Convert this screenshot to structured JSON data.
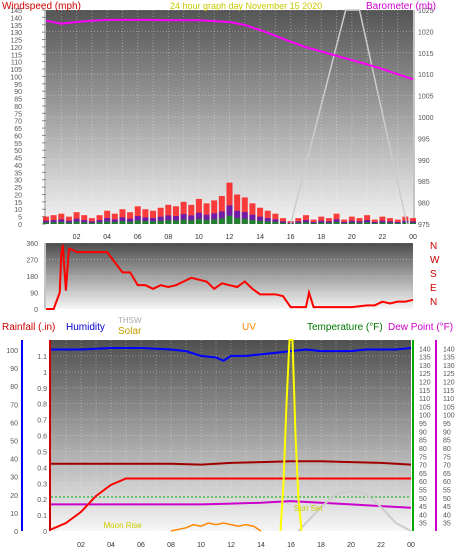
{
  "chart_data": [
    {
      "type": "line",
      "title": "24 hour graph day   November 15 2020",
      "ylabel_left": "Windspeed (mph)",
      "ylabel_right": "Barometer (mb)",
      "x_ticks": [
        "02",
        "04",
        "06",
        "08",
        "10",
        "12",
        "14",
        "16",
        "18",
        "20",
        "22",
        "00"
      ],
      "left_ticks": [
        "0",
        "5",
        "10",
        "15",
        "20",
        "25",
        "30",
        "35",
        "40",
        "45",
        "50",
        "55",
        "60",
        "65",
        "70",
        "75",
        "80",
        "85",
        "90",
        "95",
        "100",
        "105",
        "110",
        "115",
        "120",
        "125",
        "130",
        "135",
        "140",
        "145"
      ],
      "right_ticks": [
        "975",
        "980",
        "985",
        "990",
        "995",
        "1000",
        "1005",
        "1010",
        "1015",
        "1020",
        "1025"
      ],
      "ylim_left": [
        0,
        145
      ],
      "ylim_right": [
        975,
        1025
      ],
      "colors": {
        "windspeed": "#ff0000",
        "barometer": "#ff00ff",
        "gust_fill": "#0000ff",
        "wind_avg": "#00aa00",
        "solar_outline": "#cccccc"
      },
      "series": [
        {
          "name": "Barometer (mb)",
          "axis": "right",
          "color": "#ff00ff",
          "x": [
            0,
            1,
            2,
            3,
            4,
            5,
            6,
            7,
            8,
            9,
            10,
            11,
            12,
            13,
            14,
            15,
            16,
            17,
            18,
            19,
            20,
            21,
            22,
            23,
            24
          ],
          "values": [
            1022.5,
            1021.8,
            1022.2,
            1022.5,
            1022.7,
            1022.7,
            1022.7,
            1022.7,
            1022.6,
            1022.6,
            1022.6,
            1022.4,
            1022.2,
            1021.5,
            1020.3,
            1019.0,
            1017.6,
            1016.3,
            1015.3,
            1014.3,
            1013.3,
            1012.3,
            1011.2,
            1010.0,
            1008.8
          ]
        },
        {
          "name": "Windspeed (mph)",
          "axis": "left",
          "color": "#ff0000",
          "x": [
            0,
            0.5,
            1,
            1.5,
            2,
            2.5,
            3,
            3.5,
            4,
            4.5,
            5,
            5.5,
            6,
            6.5,
            7,
            7.5,
            8,
            8.5,
            9,
            9.5,
            10,
            10.5,
            11,
            11.5,
            12,
            12.5,
            13,
            13.5,
            14,
            14.5,
            15,
            15.5,
            16,
            16.5,
            17,
            17.5,
            18,
            18.5,
            19,
            19.5,
            20,
            20.5,
            21,
            21.5,
            22,
            22.5,
            23,
            23.5,
            24
          ],
          "values": [
            5,
            6,
            7,
            5,
            8,
            6,
            4,
            6,
            9,
            7,
            10,
            8,
            12,
            10,
            9,
            11,
            13,
            12,
            15,
            13,
            17,
            14,
            16,
            19,
            28,
            20,
            18,
            14,
            11,
            9,
            7,
            4,
            2,
            4,
            6,
            3,
            5,
            4,
            7,
            3,
            5,
            4,
            6,
            3,
            5,
            4,
            3,
            5,
            4
          ]
        }
      ]
    },
    {
      "type": "line",
      "title": "",
      "ylabel_right": "",
      "x_ticks": [
        "02",
        "04",
        "06",
        "08",
        "10",
        "12",
        "14",
        "16",
        "18",
        "20",
        "22",
        "00"
      ],
      "left_ticks": [
        "0",
        "90",
        "180",
        "270",
        "360"
      ],
      "right_labels": [
        "N",
        "W",
        "S",
        "E",
        "N"
      ],
      "ylim": [
        0,
        360
      ],
      "colors": {
        "direction": "#ff0000"
      },
      "series": [
        {
          "name": "",
          "color": "#ff0000",
          "x": [
            0,
            0.5,
            0.9,
            1.0,
            1.1,
            1.3,
            1.5,
            1.8,
            2.0,
            2.3,
            3,
            3.5,
            4,
            5,
            5.5,
            6,
            6.5,
            7,
            7.5,
            8,
            8.5,
            9,
            9.5,
            10,
            10.5,
            11,
            11.5,
            12,
            12.5,
            13,
            13.5,
            14,
            14.5,
            15,
            15.5,
            16,
            16.5,
            17,
            17.2,
            17.5,
            18,
            19,
            20,
            21,
            21.5,
            22,
            22.5,
            23,
            23.5,
            24
          ],
          "values": [
            0,
            0,
            90,
            300,
            350,
            100,
            330,
            320,
            310,
            310,
            310,
            310,
            310,
            200,
            200,
            130,
            130,
            110,
            130,
            120,
            130,
            150,
            170,
            160,
            150,
            110,
            140,
            130,
            120,
            150,
            110,
            80,
            80,
            80,
            70,
            10,
            10,
            10,
            90,
            10,
            10,
            10,
            10,
            20,
            20,
            40,
            30,
            40,
            40,
            50
          ]
        }
      ]
    },
    {
      "type": "line",
      "title": "",
      "legend": [
        "Rainfall (.in)",
        "Humidity",
        "THSW",
        "Solar",
        "UV",
        "Temperature (°F)",
        "Dew Point (°F)"
      ],
      "x_ticks": [
        "02",
        "04",
        "06",
        "08",
        "10",
        "12",
        "14",
        "16",
        "18",
        "20",
        "22",
        "00"
      ],
      "left_ticks": [
        "0",
        "0.1",
        "0.2",
        "0.3",
        "0.4",
        "0.5",
        "0.6",
        "0.7",
        "0.8",
        "0.9",
        "1",
        "1.1"
      ],
      "left_ticks_outer": [
        "0",
        "10",
        "20",
        "30",
        "40",
        "50",
        "60",
        "70",
        "80",
        "90",
        "100"
      ],
      "right_ticks": [
        "35",
        "40",
        "45",
        "50",
        "55",
        "60",
        "65",
        "70",
        "75",
        "80",
        "85",
        "90",
        "95",
        "100",
        "105",
        "110",
        "115",
        "120",
        "125",
        "130",
        "135",
        "140"
      ],
      "ylim_left": [
        0,
        1.2
      ],
      "ylim_right": [
        30,
        145
      ],
      "annotations": [
        "Moon Rise",
        "Sun Set"
      ],
      "colors": {
        "rainfall": "#ff0000",
        "humidity": "#0000ff",
        "thsw": "#cccccc",
        "solar": "#ffff00",
        "uv": "#ff8800",
        "temperature": "#a00000",
        "dewpoint": "#cc00cc",
        "wind_chill": "#00aa00",
        "solar_curve": "#dddddd"
      },
      "series": [
        {
          "name": "Humidity",
          "color": "#0000ff",
          "x": [
            0,
            2,
            4,
            6,
            8,
            9,
            10,
            11,
            11.5,
            12,
            13,
            14,
            15,
            16,
            17,
            18,
            19,
            20,
            21,
            22,
            23,
            24
          ],
          "values": [
            1.14,
            1.14,
            1.15,
            1.15,
            1.14,
            1.13,
            1.1,
            1.09,
            1.07,
            1.1,
            1.1,
            1.11,
            1.12,
            1.13,
            1.14,
            1.13,
            1.13,
            1.13,
            1.14,
            1.14,
            1.14,
            1.15
          ]
        },
        {
          "name": "Rainfall (.in)",
          "color": "#ff0000",
          "x": [
            0,
            1,
            2,
            3,
            4,
            5,
            6,
            24
          ],
          "values": [
            0.01,
            0.05,
            0.12,
            0.22,
            0.29,
            0.33,
            0.33,
            0.33
          ]
        },
        {
          "name": "Temperature (°F)",
          "color": "#a00000",
          "x": [
            0,
            2,
            4,
            6,
            8,
            10,
            12,
            14,
            16,
            18,
            20,
            22,
            24
          ],
          "values": [
            70.5,
            70.5,
            70.5,
            70.5,
            70.5,
            70,
            71,
            71.5,
            72,
            72,
            71.5,
            71,
            70
          ]
        },
        {
          "name": "Dew Point (°F)",
          "color": "#cc00cc",
          "x": [
            0,
            2,
            4,
            6,
            8,
            10,
            12,
            14,
            15,
            16,
            18,
            20,
            22,
            24
          ],
          "values": [
            46,
            46,
            46,
            46,
            46,
            46,
            46.5,
            47,
            47.5,
            48,
            47,
            46,
            45,
            44
          ]
        },
        {
          "name": "THSW",
          "color": "#cccccc",
          "x": [
            16.5,
            17,
            18,
            19,
            20,
            21,
            22,
            23,
            24
          ],
          "values": [
            0.0,
            0.05,
            0.15,
            0.23,
            0.25,
            0.23,
            0.15,
            0.05,
            0.0
          ]
        },
        {
          "name": "Solar",
          "color": "#ffff00",
          "x": [
            15.3,
            15.5,
            15.7,
            15.9,
            16.1,
            16.3,
            16.5,
            16.7
          ],
          "values": [
            0.0,
            0.3,
            0.8,
            1.2,
            1.2,
            0.6,
            0.2,
            0.0
          ]
        },
        {
          "name": "UV",
          "color": "#ff8800",
          "x": [
            8,
            9,
            9.5,
            10,
            10.5,
            11,
            11.5,
            12,
            12.5,
            13,
            13.5,
            14
          ],
          "values": [
            0.0,
            0.02,
            0.04,
            0.03,
            0.05,
            0.04,
            0.05,
            0.04,
            0.03,
            0.04,
            0.03,
            0.0
          ]
        }
      ]
    }
  ]
}
